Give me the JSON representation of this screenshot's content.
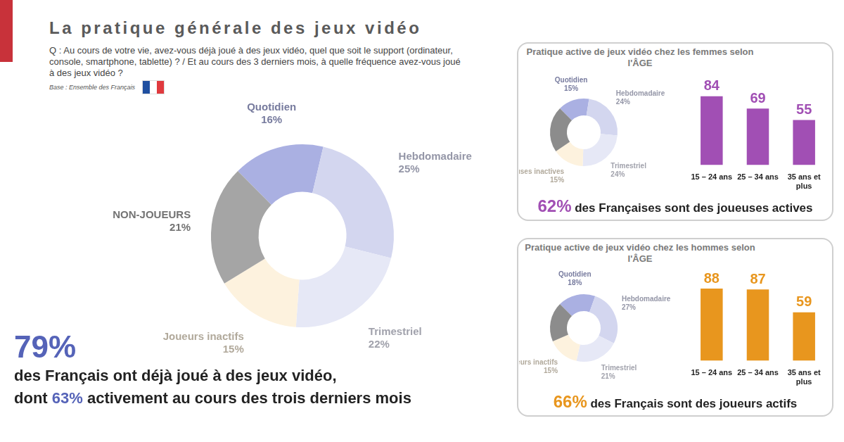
{
  "header": {
    "title": "La pratique générale des jeux vidéo",
    "question": "Q : Au cours de votre vie, avez-vous déjà joué à des jeux vidéo, quel que soit le support (ordinateur, console, smartphone, tablette) ? / Et au cours des 3 derniers mois, à quelle fréquence avez-vous joué à des jeux vidéo ?",
    "base": "Base : Ensemble des Français"
  },
  "headline": {
    "value": "79%",
    "line1": "des Français ont déjà joué à des jeux vidéo,",
    "line2_before": "dont",
    "value2": "63%",
    "line2_after": "activement au cours des trois derniers mois"
  },
  "panels": [
    {
      "title": "Pratique active de jeux vidéo chez les femmes selon l'ÂGE",
      "summary_value": "62%",
      "summary_text": "des Françaises sont des joueuses actives"
    },
    {
      "title": "Pratique active de jeux vidéo chez les hommes selon l'ÂGE",
      "summary_value": "66%",
      "summary_text": "des Français sont des joueurs actifs"
    }
  ],
  "chart_data": [
    {
      "type": "doughnut",
      "categories": [
        "Quotidien",
        "Hebdomadaire",
        "Trimestriel",
        "Joueurs inactifs",
        "NON-JOUEURS"
      ],
      "values": [
        16,
        25,
        22,
        15,
        21
      ],
      "value_labels": [
        "16%",
        "25%",
        "22%",
        "15%",
        "21%"
      ],
      "colors": [
        "#aab0e2",
        "#d3d6ef",
        "#e6e8f6",
        "#fdf2de",
        "#a5a5a5"
      ]
    },
    {
      "type": "doughnut",
      "categories": [
        "Quotidien",
        "Hebdomadaire",
        "Trimestriel",
        "Joueuses inactives",
        null
      ],
      "values": [
        15,
        24,
        24,
        15,
        22
      ],
      "value_labels": [
        "15%",
        "24%",
        "24%",
        "15%",
        null
      ],
      "colors": [
        "#aab0e2",
        "#d3d6ef",
        "#e6e8f6",
        "#fdf2de",
        "#8c8c8c"
      ]
    },
    {
      "type": "bar",
      "categories": [
        "15 – 24 ans",
        "25 – 34 ans",
        "35 ans et plus"
      ],
      "values": [
        84,
        69,
        55
      ],
      "color": "#a14fb4",
      "ylim": [
        0,
        100
      ],
      "grid": false,
      "data_labels": true,
      "tick_labels": "x"
    },
    {
      "type": "doughnut",
      "categories": [
        "Quotidien",
        "Hebdomadaire",
        "Trimestriel",
        "Joueurs inactifs",
        null
      ],
      "values": [
        18,
        27,
        21,
        15,
        19
      ],
      "value_labels": [
        "18%",
        "27%",
        "21%",
        "15%",
        null
      ],
      "colors": [
        "#aab0e2",
        "#d3d6ef",
        "#e6e8f6",
        "#fdf2de",
        "#8c8c8c"
      ]
    },
    {
      "type": "bar",
      "categories": [
        "15 – 24 ans",
        "25 – 34 ans",
        "35 ans et plus"
      ],
      "values": [
        88,
        87,
        59
      ],
      "color": "#e8961e",
      "ylim": [
        0,
        100
      ],
      "grid": false,
      "data_labels": true,
      "tick_labels": "x"
    }
  ]
}
